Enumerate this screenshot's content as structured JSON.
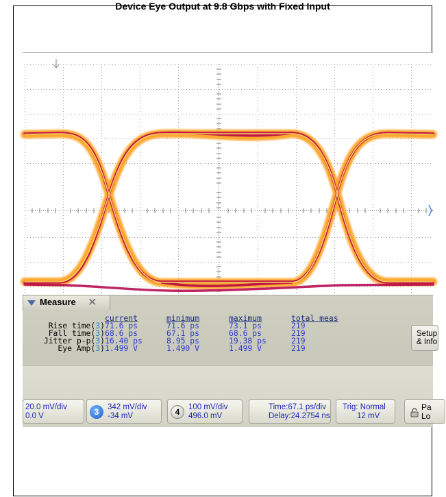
{
  "page": {
    "header_title": "Device Eye Output at 9.8 Gbps with Fixed Input"
  },
  "measure": {
    "tab_label": "Measure",
    "columns": [
      "current",
      "minimum",
      "maximum",
      "total meas"
    ],
    "rows": [
      {
        "name": "Rise time",
        "channel": "3",
        "current": "71.6 ps",
        "minimum": "71.6 ps",
        "maximum": "73.1 ps",
        "total": "219"
      },
      {
        "name": "Fall time",
        "channel": "3",
        "current": "68.6 ps",
        "minimum": "67.1 ps",
        "maximum": "68.6 ps",
        "total": "219"
      },
      {
        "name": "Jitter p-p",
        "channel": "3",
        "current": "16.40 ps",
        "minimum": "8.95 ps",
        "maximum": "19.38 ps",
        "total": "219"
      },
      {
        "name": "Eye Amp",
        "channel": "3",
        "current": "1.499 V",
        "minimum": "1.490 V",
        "maximum": "1.499 V",
        "total": "219"
      }
    ],
    "setup_line1": "Setup",
    "setup_line2": "& Info"
  },
  "status_bar": {
    "ch1": {
      "scale": "20.0 mV/div",
      "offset": "0.0 V"
    },
    "ch3": {
      "badge": "3",
      "scale": "342 mV/div",
      "offset": "-34 mV"
    },
    "ch4": {
      "badge": "4",
      "scale": "100 mV/div",
      "offset": "496.0 mV"
    },
    "time": {
      "line1": "Time:67.1 ps/div",
      "line2": "Delay:24.2754 ns"
    },
    "trig": {
      "label": "Trig:",
      "mode": "Normal",
      "level": "12 mV"
    },
    "lock": {
      "line1": "Pa",
      "line2": "Lo"
    }
  },
  "colors": {
    "grid": "#9a9a9a",
    "trace_outer": "#ff8a00",
    "trace_inner": "#b2003a",
    "trace_core": "#ffe060",
    "panel_bg": "#cfcfc2",
    "value_text": "#2a3ad0"
  }
}
